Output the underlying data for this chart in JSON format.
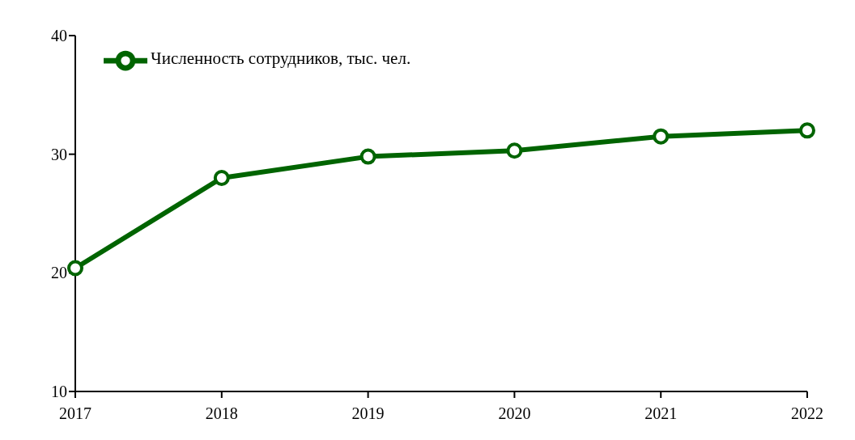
{
  "chart_data": {
    "type": "line",
    "categories": [
      "2017",
      "2018",
      "2019",
      "2020",
      "2021",
      "2022"
    ],
    "series": [
      {
        "name": "Численность сотрудников, тыс. чел.",
        "color": "#006400",
        "values": [
          20.4,
          28.0,
          29.8,
          30.3,
          31.5,
          32.0
        ]
      }
    ],
    "ylim": [
      10,
      40
    ],
    "yticks": [
      10,
      20,
      30,
      40
    ],
    "grid": false,
    "legend": "top left",
    "marker": "circle",
    "line_style": "solid"
  }
}
